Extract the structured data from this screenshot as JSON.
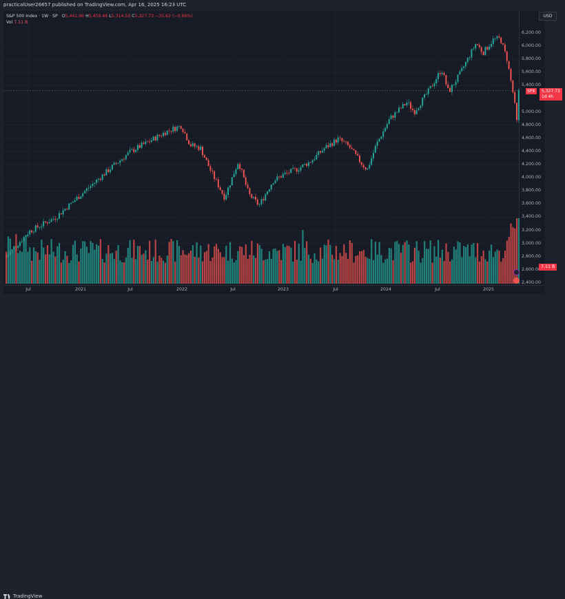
{
  "header": {
    "published_text": "practicalUser26657 published on TradingView.com, Apr 16, 2025 16:23 UTC"
  },
  "legend": {
    "symbol": "S&P 500 Index · 1W · SP",
    "open_label": "O",
    "open": "5,441.96",
    "high_label": "H",
    "high": "5,459.46",
    "low_label": "L",
    "low": "5,314.50",
    "close_label": "C",
    "close": "5,327.73",
    "change": "−35.62 (−0.66%)",
    "vol_label": "Vol",
    "vol": "7.11 B"
  },
  "price_axis": {
    "currency": "USD",
    "ticks": [
      "6,200.00",
      "6,000.00",
      "5,800.00",
      "5,600.00",
      "5,400.00",
      "5,000.00",
      "4,800.00",
      "4,600.00",
      "4,400.00",
      "4,200.00",
      "4,000.00",
      "3,800.00",
      "3,600.00",
      "3,400.00",
      "3,200.00",
      "3,000.00",
      "2,800.00",
      "2,600.00",
      "2,400.00"
    ],
    "symbol_badge": "SPX",
    "last_price": "5,327.73",
    "countdown": "1d 4h",
    "vol_badge": "7.11 B"
  },
  "time_axis": {
    "ticks": [
      "Jul",
      "2021",
      "Jul",
      "2022",
      "Jul",
      "2023",
      "Jul",
      "2024",
      "Jul",
      "2025"
    ]
  },
  "footer": {
    "brand": "TradingView"
  },
  "colors": {
    "up": "#26a69a",
    "down": "#ef5350",
    "background": "#171b26",
    "grid": "#232733",
    "last_price": "#f23645"
  },
  "chart_data": {
    "type": "candlestick",
    "title": "S&P 500 Index · 1W · SP",
    "timeframe": "1W",
    "x_range": [
      "2020-04",
      "2025-04"
    ],
    "ylim": [
      2300,
      6300
    ],
    "y_ticks": [
      2400,
      2600,
      2800,
      3000,
      3200,
      3400,
      3600,
      3800,
      4000,
      4200,
      4400,
      4600,
      4800,
      5000,
      5200,
      5400,
      5600,
      5800,
      6000,
      6200
    ],
    "x_ticks": [
      "Jul",
      "2021",
      "Jul",
      "2022",
      "Jul",
      "2023",
      "Jul",
      "2024",
      "Jul",
      "2025"
    ],
    "last_bar": {
      "open": 5441.96,
      "high": 5459.46,
      "low": 5314.5,
      "close": 5327.73,
      "change": -35.62,
      "change_pct": -0.66,
      "volume": "7.11 B"
    },
    "key_points": [
      {
        "date": "2020-04",
        "close": 2800
      },
      {
        "date": "2020-07",
        "close": 3200
      },
      {
        "date": "2021-01",
        "close": 3750
      },
      {
        "date": "2021-07",
        "close": 4400
      },
      {
        "date": "2022-01",
        "close": 4790
      },
      {
        "date": "2022-06",
        "close": 3670
      },
      {
        "date": "2022-08",
        "close": 4300
      },
      {
        "date": "2022-10",
        "close": 3580
      },
      {
        "date": "2023-02",
        "close": 4180
      },
      {
        "date": "2023-07",
        "close": 4590
      },
      {
        "date": "2023-10",
        "close": 4120
      },
      {
        "date": "2024-03",
        "close": 5250
      },
      {
        "date": "2024-07",
        "close": 5660
      },
      {
        "date": "2024-08",
        "close": 5180
      },
      {
        "date": "2024-12",
        "close": 6090
      },
      {
        "date": "2025-02",
        "close": 6140
      },
      {
        "date": "2025-04",
        "close": 4830,
        "note": "low wick"
      },
      {
        "date": "2025-04-16",
        "close": 5327.73
      }
    ],
    "volume_pane": {
      "ylabel": "Vol",
      "last": "7.11 B",
      "spike": "2025-04"
    },
    "legend_position": "top-left",
    "grid": true
  }
}
